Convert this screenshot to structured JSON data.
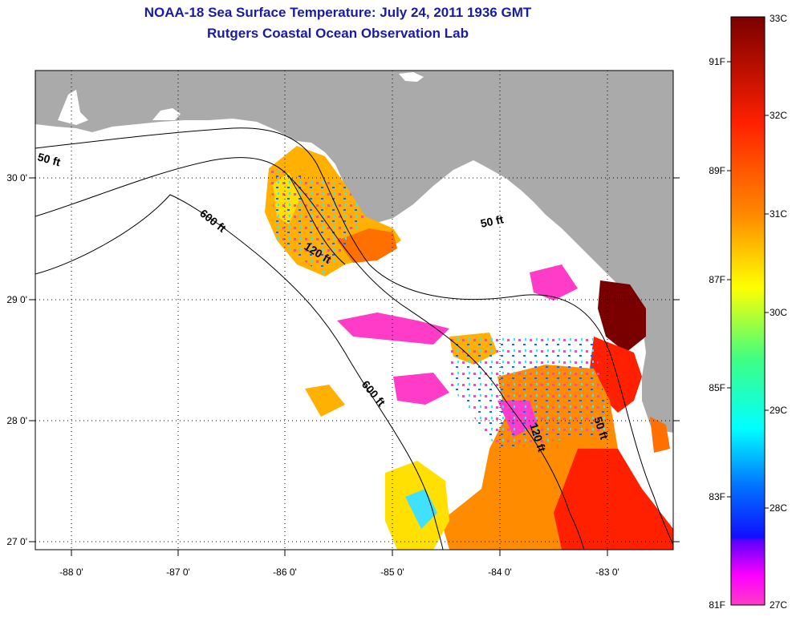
{
  "title": {
    "line1": "NOAA-18 Sea Surface Temperature:  July 24, 2011 1936 GMT",
    "line2": "Rutgers Coastal Ocean Observation Lab"
  },
  "map": {
    "lon_ticks": [
      "-88 0'",
      "-87 0'",
      "-86 0'",
      "-85 0'",
      "-84 0'",
      "-83 0'"
    ],
    "lat_ticks": [
      "30 0'",
      "29 0'",
      "28 0'",
      "27 0'"
    ],
    "contour_labels": [
      "50 ft",
      "600 ft",
      "120 ft",
      "50 ft",
      "600 ft",
      "120 ft",
      "50 ft"
    ],
    "land_color": "#aaaaaa",
    "cloud_color": "#ffffff"
  },
  "colorbar": {
    "celsius_labels": [
      "33C",
      "32C",
      "31C",
      "30C",
      "29C",
      "28C",
      "27C"
    ],
    "fahrenheit_labels": [
      "91F",
      "89F",
      "87F",
      "85F",
      "83F",
      "81F"
    ],
    "colors": [
      "#7a0000",
      "#ff2000",
      "#ff8c00",
      "#ffff00",
      "#40ff80",
      "#00ffff",
      "#0070ff",
      "#1010ff",
      "#7000ff",
      "#ff00ff",
      "#ff3cc8"
    ]
  }
}
